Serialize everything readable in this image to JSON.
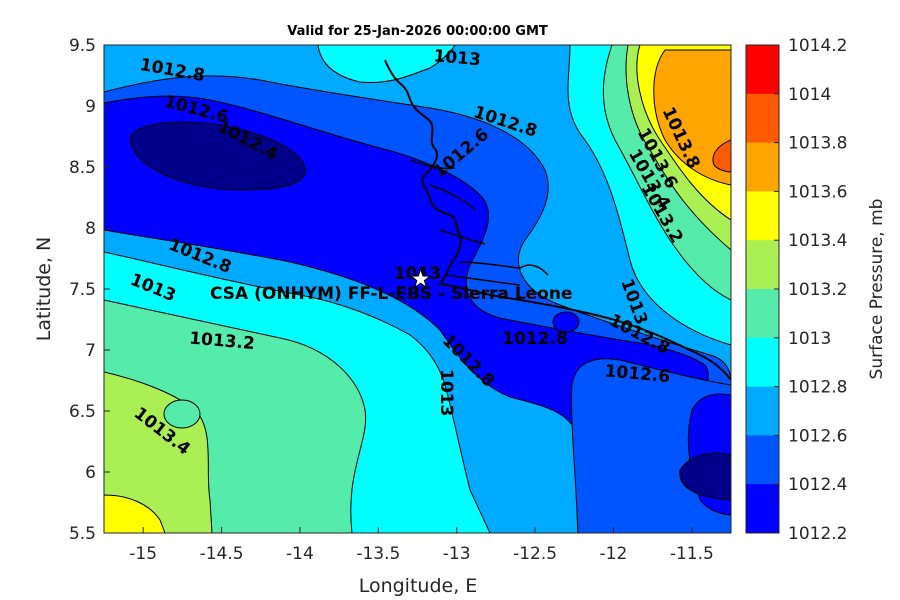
{
  "title": "Valid for 25-Jan-2026 00:00:00 GMT",
  "map": {
    "xlabel": "Longitude, E",
    "ylabel": "Latitude, N",
    "xlim": [
      -15.25,
      -11.25
    ],
    "ylim": [
      5.5,
      9.5
    ],
    "xticks": [
      "-15",
      "-14.5",
      "-14",
      "-13.5",
      "-13",
      "-12.5",
      "-12",
      "-11.5"
    ],
    "yticks": [
      "9.5",
      "9",
      "8.5",
      "8",
      "7.5",
      "7",
      "6.5",
      "6",
      "5.5"
    ],
    "station_label": "CSA (ONHYM) FF-L-EBS  - Sierra Leone",
    "station_lon": -13.23,
    "station_lat": 7.58,
    "contour_labels": [
      "1012.8",
      "1013",
      "1012.6",
      "1012.4",
      "1012.8",
      "1012.6",
      "1013.8",
      "1013.6",
      "1013.4",
      "1013.2",
      "1012.8",
      "1013",
      "1013.2",
      "1013",
      "1013",
      "1012.8",
      "1013.4",
      "1013",
      "1012.8",
      "1012.6",
      "1012.8"
    ]
  },
  "colorbar": {
    "title": "Surface Pressure, mb",
    "tick_labels": [
      "1014.2",
      "1014",
      "1013.8",
      "1013.6",
      "1013.4",
      "1013.2",
      "1013",
      "1012.8",
      "1012.6",
      "1012.4",
      "1012.2"
    ],
    "level_colors": [
      "#ff0000",
      "#ff5a00",
      "#ffa500",
      "#ffff00",
      "#aaf055",
      "#55ebaa",
      "#00ffff",
      "#00aaff",
      "#0055ff",
      "#0000ff",
      "#00008b"
    ]
  },
  "colors": {
    "c1012_2": "#00008b",
    "c1012_4": "#0000ff",
    "c1012_6": "#0055ff",
    "c1012_8": "#00aaff",
    "c1013": "#00ffff",
    "c1013_2": "#55ebaa",
    "c1013_4": "#aaf055",
    "c1013_6": "#ffff00",
    "c1013_8": "#ffa500",
    "c1014": "#ff5a00"
  }
}
